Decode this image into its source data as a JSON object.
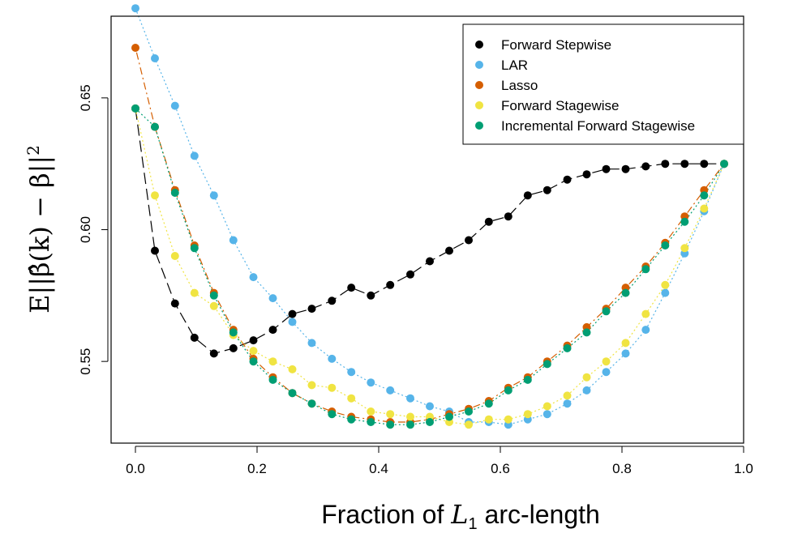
{
  "chart_data": {
    "type": "scatter",
    "xlabel": "Fraction of L1 arc-length",
    "ylabel": "E||β̂(k) − β||²",
    "xlim": [
      -0.04,
      1.0
    ],
    "ylim": [
      0.519,
      0.681
    ],
    "xticks": [
      0.0,
      0.2,
      0.4,
      0.6,
      0.8,
      1.0
    ],
    "xtick_labels": [
      "0.0",
      "0.2",
      "0.4",
      "0.6",
      "0.8",
      "1.0"
    ],
    "yticks": [
      0.55,
      0.6,
      0.65
    ],
    "ytick_labels": [
      "0.55",
      "0.60",
      "0.65"
    ],
    "legend_position": "top-right",
    "grid": false,
    "series": [
      {
        "name": "Forward Stepwise",
        "color": "#000000",
        "line_style": "longdash",
        "x": [
          0.0,
          0.032,
          0.065,
          0.097,
          0.129,
          0.161,
          0.194,
          0.226,
          0.258,
          0.29,
          0.323,
          0.355,
          0.387,
          0.419,
          0.452,
          0.484,
          0.516,
          0.548,
          0.581,
          0.613,
          0.645,
          0.677,
          0.71,
          0.742,
          0.774,
          0.806,
          0.839,
          0.871,
          0.903,
          0.935,
          0.968
        ],
        "y": [
          0.646,
          0.592,
          0.572,
          0.559,
          0.553,
          0.555,
          0.558,
          0.562,
          0.568,
          0.57,
          0.573,
          0.578,
          0.575,
          0.579,
          0.583,
          0.588,
          0.592,
          0.596,
          0.603,
          0.605,
          0.613,
          0.615,
          0.619,
          0.621,
          0.623,
          0.623,
          0.624,
          0.625,
          0.625,
          0.625,
          0.625
        ]
      },
      {
        "name": "LAR",
        "color": "#56b4e9",
        "line_style": "dotted",
        "x": [
          0.0,
          0.032,
          0.065,
          0.097,
          0.129,
          0.161,
          0.194,
          0.226,
          0.258,
          0.29,
          0.323,
          0.355,
          0.387,
          0.419,
          0.452,
          0.484,
          0.516,
          0.548,
          0.581,
          0.613,
          0.645,
          0.677,
          0.71,
          0.742,
          0.774,
          0.806,
          0.839,
          0.871,
          0.903,
          0.935,
          0.968
        ],
        "y": [
          0.684,
          0.665,
          0.647,
          0.628,
          0.613,
          0.596,
          0.582,
          0.574,
          0.565,
          0.557,
          0.551,
          0.546,
          0.542,
          0.539,
          0.536,
          0.533,
          0.531,
          0.527,
          0.527,
          0.526,
          0.528,
          0.53,
          0.534,
          0.539,
          0.546,
          0.553,
          0.562,
          0.576,
          0.591,
          0.607,
          0.625
        ]
      },
      {
        "name": "Lasso",
        "color": "#d55e00",
        "line_style": "dotdash",
        "x": [
          0.0,
          0.032,
          0.065,
          0.097,
          0.129,
          0.161,
          0.194,
          0.226,
          0.258,
          0.29,
          0.323,
          0.355,
          0.387,
          0.419,
          0.452,
          0.484,
          0.516,
          0.548,
          0.581,
          0.613,
          0.645,
          0.677,
          0.71,
          0.742,
          0.774,
          0.806,
          0.839,
          0.871,
          0.903,
          0.935,
          0.968
        ],
        "y": [
          0.669,
          0.639,
          0.615,
          0.594,
          0.576,
          0.562,
          0.551,
          0.544,
          0.538,
          0.534,
          0.531,
          0.529,
          0.528,
          0.527,
          0.527,
          0.528,
          0.53,
          0.532,
          0.535,
          0.54,
          0.544,
          0.55,
          0.556,
          0.563,
          0.57,
          0.578,
          0.586,
          0.595,
          0.605,
          0.615,
          0.625
        ]
      },
      {
        "name": "Forward Stagewise",
        "color": "#f0e442",
        "line_style": "dotted",
        "x": [
          0.0,
          0.032,
          0.065,
          0.097,
          0.129,
          0.161,
          0.194,
          0.226,
          0.258,
          0.29,
          0.323,
          0.355,
          0.387,
          0.419,
          0.452,
          0.484,
          0.516,
          0.548,
          0.581,
          0.613,
          0.645,
          0.677,
          0.71,
          0.742,
          0.774,
          0.806,
          0.839,
          0.871,
          0.903,
          0.935,
          0.968
        ],
        "y": [
          0.646,
          0.613,
          0.59,
          0.576,
          0.571,
          0.56,
          0.554,
          0.55,
          0.547,
          0.541,
          0.54,
          0.536,
          0.531,
          0.53,
          0.529,
          0.529,
          0.527,
          0.526,
          0.528,
          0.528,
          0.53,
          0.533,
          0.537,
          0.544,
          0.55,
          0.557,
          0.568,
          0.579,
          0.593,
          0.608,
          0.625
        ]
      },
      {
        "name": "Incremental Forward Stagewise",
        "color": "#009e73",
        "line_style": "dotted",
        "x": [
          0.0,
          0.032,
          0.065,
          0.097,
          0.129,
          0.161,
          0.194,
          0.226,
          0.258,
          0.29,
          0.323,
          0.355,
          0.387,
          0.419,
          0.452,
          0.484,
          0.516,
          0.548,
          0.581,
          0.613,
          0.645,
          0.677,
          0.71,
          0.742,
          0.774,
          0.806,
          0.839,
          0.871,
          0.903,
          0.935,
          0.968
        ],
        "y": [
          0.646,
          0.639,
          0.614,
          0.593,
          0.575,
          0.561,
          0.55,
          0.543,
          0.538,
          0.534,
          0.53,
          0.528,
          0.527,
          0.526,
          0.526,
          0.527,
          0.529,
          0.531,
          0.534,
          0.539,
          0.543,
          0.549,
          0.555,
          0.561,
          0.569,
          0.576,
          0.585,
          0.594,
          0.603,
          0.613,
          0.625
        ]
      }
    ]
  }
}
